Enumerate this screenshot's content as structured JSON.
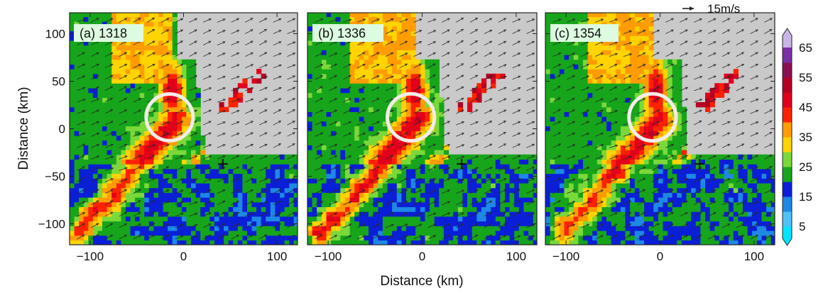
{
  "chart_data": {
    "type": "heatmap",
    "title": "",
    "xlabel": "Distance (km)",
    "ylabel": "Distance (km)",
    "xlim": [
      -122,
      122
    ],
    "ylim": [
      -122,
      122
    ],
    "x_ticks": [
      -100,
      0,
      100
    ],
    "y_ticks": [
      -100,
      -50,
      0,
      50,
      100
    ],
    "wind_reference": {
      "label": "15m/s",
      "speed_ms": 15
    },
    "colorbar": {
      "ticks": [
        5,
        15,
        25,
        35,
        45,
        55,
        65
      ],
      "levels": [
        0,
        5,
        10,
        15,
        20,
        25,
        30,
        35,
        40,
        45,
        50,
        55,
        60,
        65,
        70
      ],
      "colors": [
        "#00e5ff",
        "#4fc3f7",
        "#1e88e5",
        "#0a1fd6",
        "#16a51b",
        "#7bd83a",
        "#ffd400",
        "#ff9c00",
        "#ff2200",
        "#e0001c",
        "#b40022",
        "#8a0f52",
        "#7a2ea8",
        "#c8b4e6"
      ]
    },
    "panels": [
      {
        "id": "a",
        "label": "(a) 1318",
        "time": "1318",
        "circle_center_km": [
          -15,
          12
        ],
        "circle_radius_km": 25,
        "marker_km": [
          42,
          -37
        ]
      },
      {
        "id": "b",
        "label": "(b) 1336",
        "time": "1336",
        "circle_center_km": [
          -12,
          12
        ],
        "circle_radius_km": 25,
        "marker_km": [
          42,
          -37
        ]
      },
      {
        "id": "c",
        "label": "(c) 1354",
        "time": "1354",
        "circle_center_km": [
          -8,
          12
        ],
        "circle_radius_km": 25,
        "marker_km": [
          42,
          -37
        ]
      }
    ]
  }
}
